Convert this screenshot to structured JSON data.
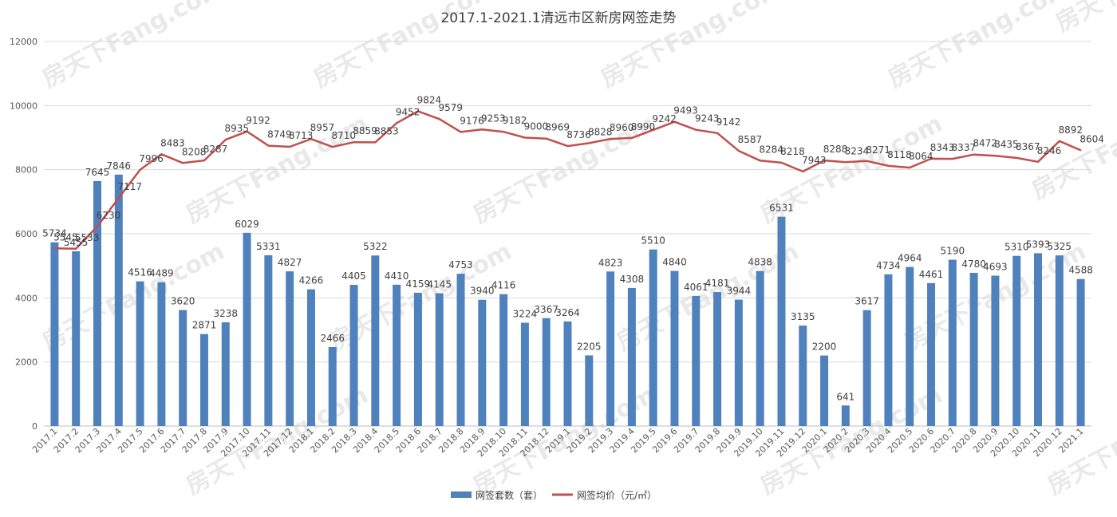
{
  "chart_data": {
    "type": "bar",
    "title": "2017.1-2021.1清远市区新房网签走势",
    "categories": [
      "2017.1",
      "2017.2",
      "2017.3",
      "2017.4",
      "2017.5",
      "2017.6",
      "2017.7",
      "2017.8",
      "2017.9",
      "2017.10",
      "2017.11",
      "2017.12",
      "2018.1",
      "2018.2",
      "2018.3",
      "2018.4",
      "2018.5",
      "2018.6",
      "2018.7",
      "2018.8",
      "2018.9",
      "2018.10",
      "2018.11",
      "2018.12",
      "2019.1",
      "2019.2",
      "2019.3",
      "2019.4",
      "2019.5",
      "2019.6",
      "2019.7",
      "2019.8",
      "2019.9",
      "2019.10",
      "2019.11",
      "2019.12",
      "2020.1",
      "2020.2",
      "2020.3",
      "2020.4",
      "2020.5",
      "2020.6",
      "2020.7",
      "2020.8",
      "2020.9",
      "2020.10",
      "2020.11",
      "2020.12",
      "2021.1"
    ],
    "series": [
      {
        "name": "网签套数（套）",
        "type": "bar",
        "color": "#4f81bd",
        "values": [
          5734,
          5455,
          7645,
          7846,
          4516,
          4489,
          3620,
          2871,
          3238,
          6029,
          5331,
          4827,
          4266,
          2466,
          4405,
          5322,
          4410,
          4159,
          4145,
          4753,
          3940,
          4116,
          3224,
          3367,
          3264,
          2205,
          4823,
          4308,
          5510,
          4840,
          4061,
          4181,
          3944,
          4838,
          6531,
          3135,
          2200,
          641,
          3617,
          4734,
          4964,
          4461,
          5190,
          4780,
          4693,
          5310,
          5393,
          5325,
          4588
        ]
      },
      {
        "name": "网签均价（元/㎡）",
        "type": "line",
        "color": "#c0504d",
        "values": [
          5545,
          5533,
          6230,
          7117,
          7996,
          8483,
          8208,
          8287,
          8935,
          9192,
          8749,
          8713,
          8957,
          8710,
          8859,
          8853,
          9452,
          9824,
          9579,
          9176,
          9253,
          9182,
          9000,
          8969,
          8736,
          8828,
          8960,
          8990,
          9242,
          9493,
          9243,
          9142,
          8587,
          8284,
          8218,
          7943,
          8288,
          8234,
          8271,
          8118,
          8064,
          8343,
          8337,
          8472,
          8435,
          8367,
          8246,
          8892,
          8604
        ]
      }
    ],
    "yticks": [
      "0",
      "2000",
      "4000",
      "6000",
      "8000",
      "10000",
      "12000"
    ],
    "ylim": [
      0,
      12000
    ],
    "grid": true,
    "legend_position": "bottom-center",
    "watermark": "房天下Fang.com"
  }
}
